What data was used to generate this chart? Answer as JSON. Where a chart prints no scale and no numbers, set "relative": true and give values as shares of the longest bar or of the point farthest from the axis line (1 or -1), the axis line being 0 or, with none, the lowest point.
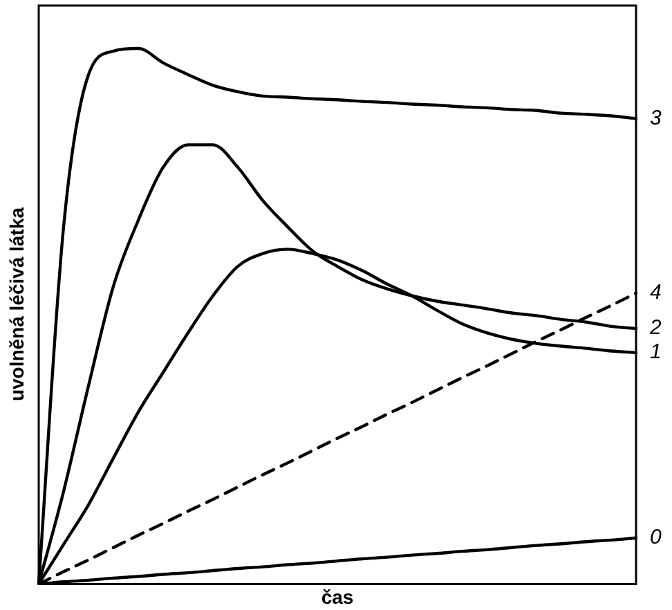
{
  "chart_data": {
    "type": "line",
    "relative": true,
    "xlabel": "čas",
    "ylabel": "uvolněná léčivá látka",
    "tick_labels": false,
    "grid": false,
    "legend": false,
    "marker": "none",
    "categories": [
      null,
      null,
      null,
      null,
      null,
      null,
      null,
      null,
      null,
      null,
      null,
      null,
      null,
      null,
      null,
      null,
      null,
      null,
      null,
      null,
      null,
      null,
      null,
      null,
      null
    ],
    "series": [
      {
        "name": "3",
        "color": "#000000",
        "values": [
          0,
          0.667,
          0.951,
          0.995,
          1,
          0.973,
          0.951,
          0.931,
          0.919,
          0.911,
          0.909,
          0.906,
          0.904,
          0.901,
          0.899,
          0.896,
          0.894,
          0.891,
          0.889,
          0.886,
          0.884,
          0.879,
          0.877,
          0.874,
          0.869
        ]
      },
      {
        "name": "2",
        "color": "#000000",
        "values": [
          0,
          0.173,
          0.37,
          0.556,
          0.679,
          0.778,
          0.82,
          0.82,
          0.778,
          0.716,
          0.667,
          0.622,
          0.593,
          0.568,
          0.551,
          0.538,
          0.528,
          0.521,
          0.514,
          0.506,
          0.501,
          0.494,
          0.489,
          0.481,
          0.477
        ]
      },
      {
        "name": "1",
        "color": "#000000",
        "values": [
          0,
          0.074,
          0.148,
          0.235,
          0.321,
          0.395,
          0.469,
          0.538,
          0.593,
          0.617,
          0.625,
          0.617,
          0.605,
          0.585,
          0.56,
          0.538,
          0.511,
          0.486,
          0.469,
          0.457,
          0.449,
          0.444,
          0.44,
          0.435,
          0.432
        ]
      },
      {
        "name": "4",
        "color": "#000000",
        "line_style": "dashed",
        "values": [
          0,
          0.023,
          0.045,
          0.068,
          0.091,
          0.113,
          0.136,
          0.158,
          0.181,
          0.204,
          0.226,
          0.249,
          0.272,
          0.294,
          0.317,
          0.339,
          0.362,
          0.385,
          0.407,
          0.43,
          0.453,
          0.475,
          0.498,
          0.52,
          0.543
        ]
      },
      {
        "name": "0",
        "color": "#000000",
        "values": [
          0,
          0.004,
          0.007,
          0.011,
          0.014,
          0.018,
          0.021,
          0.025,
          0.029,
          0.032,
          0.036,
          0.039,
          0.043,
          0.047,
          0.05,
          0.054,
          0.057,
          0.061,
          0.064,
          0.068,
          0.072,
          0.075,
          0.079,
          0.082,
          0.086
        ]
      }
    ]
  }
}
